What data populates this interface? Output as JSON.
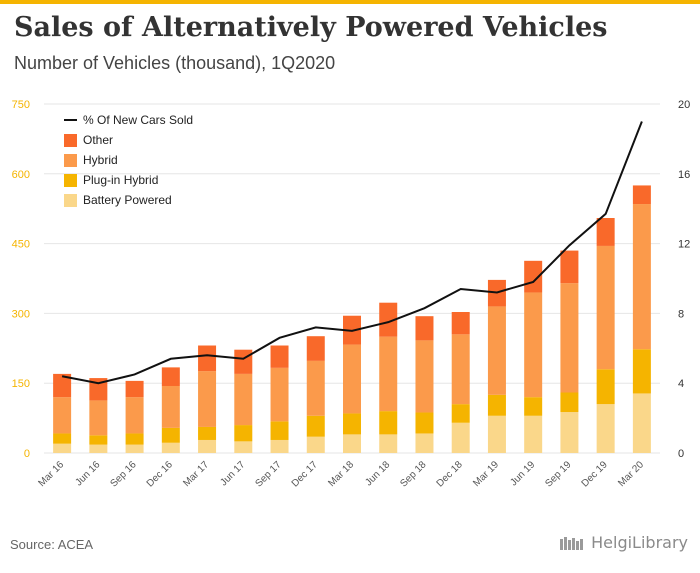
{
  "header": {
    "title": "Sales of Alternatively Powered Vehicles",
    "subtitle": "Number of Vehicles (thousand), 1Q2020"
  },
  "footer": {
    "source": "Source: ACEA",
    "brand": "HelgiLibrary"
  },
  "colors": {
    "accent_bar": "#f5b400",
    "battery": "#fad78a",
    "plugin": "#f5b400",
    "hybrid": "#fb9a4b",
    "other": "#f9692a",
    "line": "#111111",
    "left_ticks": "#f5b400",
    "right_ticks": "#333333"
  },
  "chart_data": {
    "type": "bar",
    "stacked": true,
    "categories": [
      "Mar 16",
      "Jun 16",
      "Sep 16",
      "Dec 16",
      "Mar 17",
      "Jun 17",
      "Sep 17",
      "Dec 17",
      "Mar 18",
      "Jun 18",
      "Sep 18",
      "Dec 18",
      "Mar 19",
      "Jun 19",
      "Sep 19",
      "Dec 19",
      "Mar 20"
    ],
    "series": [
      {
        "name": "Battery Powered",
        "values": [
          20,
          18,
          18,
          22,
          28,
          25,
          28,
          35,
          40,
          40,
          42,
          65,
          80,
          80,
          88,
          105,
          128
        ]
      },
      {
        "name": "Plug-in Hybrid",
        "values": [
          22,
          20,
          24,
          32,
          28,
          35,
          40,
          45,
          45,
          50,
          45,
          40,
          45,
          40,
          42,
          75,
          95
        ]
      },
      {
        "name": "Hybrid",
        "values": [
          78,
          75,
          78,
          90,
          120,
          110,
          115,
          118,
          148,
          160,
          155,
          150,
          190,
          225,
          235,
          265,
          312
        ]
      },
      {
        "name": "Other",
        "values": [
          50,
          48,
          35,
          40,
          55,
          52,
          48,
          53,
          62,
          73,
          52,
          48,
          57,
          68,
          70,
          60,
          40
        ]
      }
    ],
    "line_series": {
      "name": "% Of New Cars Sold",
      "axis": "right",
      "values": [
        4.4,
        4.0,
        4.5,
        5.4,
        5.6,
        5.4,
        6.6,
        7.2,
        7.0,
        7.5,
        8.3,
        9.4,
        9.2,
        9.8,
        11.9,
        13.7,
        19.0
      ]
    },
    "ylim": [
      0,
      750
    ],
    "yticks": [
      0,
      150,
      300,
      450,
      600,
      750
    ],
    "y2lim": [
      0,
      20
    ],
    "y2ticks": [
      0,
      4,
      8,
      12,
      16,
      20
    ],
    "grid": true,
    "legend_position": "top-left"
  }
}
